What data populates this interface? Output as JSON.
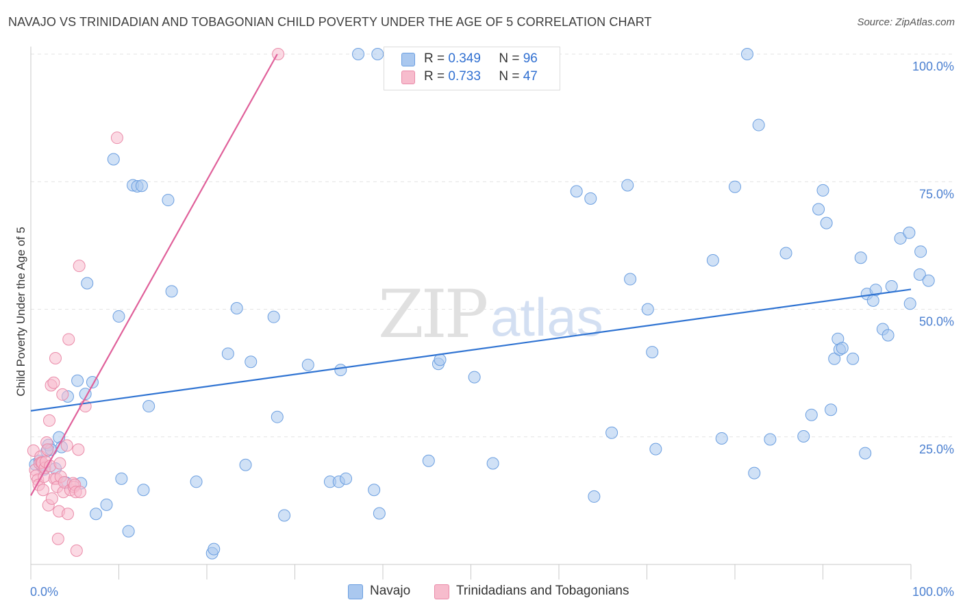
{
  "title": "NAVAJO VS TRINIDADIAN AND TOBAGONIAN CHILD POVERTY UNDER THE AGE OF 5 CORRELATION CHART",
  "source": "Source: ZipAtlas.com",
  "watermark": {
    "zip": "ZIP",
    "atlas": "atlas"
  },
  "colors": {
    "navajo_fill": "#aac8ef",
    "navajo_stroke": "#6a9ee0",
    "navajo_line": "#2f73d2",
    "trini_fill": "#f7bccd",
    "trini_stroke": "#ea8aa8",
    "trini_line": "#e0609a",
    "tick_text": "#4a7fd0",
    "grid": "#e3e3e3"
  },
  "legend_top": [
    {
      "r_label": "R =",
      "r_value": "0.349",
      "n_label": "N =",
      "n_value": "96"
    },
    {
      "r_label": "R =",
      "r_value": "0.733",
      "n_label": "N =",
      "n_value": "47"
    }
  ],
  "chart_data": {
    "type": "scatter",
    "title": "NAVAJO VS TRINIDADIAN AND TOBAGONIAN CHILD POVERTY UNDER THE AGE OF 5 CORRELATION CHART",
    "xlabel": "",
    "ylabel": "Child Poverty Under the Age of 5",
    "xlim": [
      0,
      100
    ],
    "ylim": [
      0,
      100
    ],
    "x_tick_labels": [
      "0.0%",
      "100.0%"
    ],
    "y_tick_labels": [
      "100.0%",
      "75.0%",
      "50.0%",
      "25.0%"
    ],
    "y_ticks": [
      100,
      75,
      50,
      25
    ],
    "grid": true,
    "legend": "bottom-center",
    "series": [
      {
        "name": "Navajo",
        "r": 0.349,
        "n": 96,
        "trend": {
          "x": [
            0,
            100
          ],
          "y": [
            30.1,
            53.9
          ]
        },
        "points": [
          [
            0.5,
            19.6
          ],
          [
            1.0,
            20.3
          ],
          [
            1.3,
            19.1
          ],
          [
            1.5,
            18.6
          ],
          [
            1.8,
            22.2
          ],
          [
            2.0,
            23.4
          ],
          [
            2.3,
            22.5
          ],
          [
            2.8,
            18.8
          ],
          [
            3.2,
            24.9
          ],
          [
            3.5,
            23.0
          ],
          [
            4.0,
            16.0
          ],
          [
            4.2,
            32.9
          ],
          [
            5.3,
            36.0
          ],
          [
            5.7,
            15.9
          ],
          [
            6.2,
            33.4
          ],
          [
            6.4,
            55.1
          ],
          [
            7.0,
            35.7
          ],
          [
            7.4,
            9.9
          ],
          [
            8.6,
            11.7
          ],
          [
            9.4,
            79.4
          ],
          [
            10.0,
            48.6
          ],
          [
            10.3,
            16.8
          ],
          [
            11.1,
            6.5
          ],
          [
            11.6,
            74.3
          ],
          [
            12.1,
            74.1
          ],
          [
            12.6,
            74.2
          ],
          [
            12.8,
            14.6
          ],
          [
            13.4,
            31.0
          ],
          [
            15.6,
            71.4
          ],
          [
            16.0,
            53.5
          ],
          [
            18.8,
            16.2
          ],
          [
            20.6,
            2.2
          ],
          [
            20.8,
            3.0
          ],
          [
            22.4,
            41.3
          ],
          [
            23.4,
            50.2
          ],
          [
            24.4,
            19.5
          ],
          [
            25.0,
            39.7
          ],
          [
            27.6,
            48.5
          ],
          [
            28.0,
            28.9
          ],
          [
            28.8,
            9.6
          ],
          [
            31.5,
            39.1
          ],
          [
            34.0,
            16.2
          ],
          [
            35.0,
            16.2
          ],
          [
            35.2,
            38.1
          ],
          [
            35.8,
            16.8
          ],
          [
            37.2,
            100
          ],
          [
            39.0,
            14.6
          ],
          [
            39.4,
            100
          ],
          [
            39.6,
            10.0
          ],
          [
            45.2,
            20.3
          ],
          [
            46.3,
            39.3
          ],
          [
            46.5,
            40.1
          ],
          [
            50.4,
            36.7
          ],
          [
            52.5,
            19.8
          ],
          [
            62.0,
            73.1
          ],
          [
            63.6,
            71.7
          ],
          [
            64.0,
            13.3
          ],
          [
            66.0,
            25.8
          ],
          [
            67.8,
            74.3
          ],
          [
            68.1,
            55.9
          ],
          [
            70.1,
            50.0
          ],
          [
            70.6,
            41.6
          ],
          [
            71.0,
            22.6
          ],
          [
            77.5,
            59.6
          ],
          [
            78.5,
            24.7
          ],
          [
            80.0,
            74.0
          ],
          [
            81.4,
            100
          ],
          [
            82.2,
            17.9
          ],
          [
            82.7,
            86.1
          ],
          [
            84.0,
            24.5
          ],
          [
            85.8,
            61.0
          ],
          [
            87.8,
            25.1
          ],
          [
            88.7,
            29.3
          ],
          [
            89.5,
            69.6
          ],
          [
            90.0,
            73.3
          ],
          [
            90.4,
            66.9
          ],
          [
            90.9,
            30.3
          ],
          [
            91.3,
            40.3
          ],
          [
            91.7,
            44.2
          ],
          [
            91.9,
            42.1
          ],
          [
            92.2,
            42.4
          ],
          [
            93.4,
            40.3
          ],
          [
            94.3,
            60.1
          ],
          [
            94.8,
            21.8
          ],
          [
            95.0,
            53.0
          ],
          [
            95.7,
            51.7
          ],
          [
            96.0,
            53.8
          ],
          [
            96.8,
            46.1
          ],
          [
            97.4,
            44.9
          ],
          [
            97.8,
            54.5
          ],
          [
            98.8,
            63.9
          ],
          [
            99.8,
            65.0
          ],
          [
            99.9,
            51.1
          ],
          [
            101.0,
            56.8
          ],
          [
            101.1,
            61.3
          ],
          [
            102.0,
            55.6
          ]
        ]
      },
      {
        "name": "Trinidadians and Tobagonians",
        "r": 0.733,
        "n": 47,
        "trend": {
          "x": [
            0,
            28
          ],
          "y": [
            13.5,
            100
          ]
        },
        "points": [
          [
            0.3,
            22.3
          ],
          [
            0.5,
            18.5
          ],
          [
            0.6,
            17.4
          ],
          [
            0.8,
            16.6
          ],
          [
            0.9,
            15.6
          ],
          [
            1.0,
            19.8
          ],
          [
            1.1,
            21.1
          ],
          [
            1.2,
            20.0
          ],
          [
            1.3,
            19.9
          ],
          [
            1.4,
            14.6
          ],
          [
            1.5,
            17.2
          ],
          [
            1.6,
            18.9
          ],
          [
            1.7,
            20.1
          ],
          [
            1.8,
            23.9
          ],
          [
            1.9,
            22.5
          ],
          [
            2.0,
            11.6
          ],
          [
            2.1,
            28.2
          ],
          [
            2.2,
            19.3
          ],
          [
            2.3,
            35.1
          ],
          [
            2.4,
            12.9
          ],
          [
            2.6,
            35.6
          ],
          [
            2.7,
            16.8
          ],
          [
            2.8,
            40.4
          ],
          [
            2.9,
            16.8
          ],
          [
            3.0,
            15.2
          ],
          [
            3.1,
            5.0
          ],
          [
            3.2,
            10.4
          ],
          [
            3.3,
            19.8
          ],
          [
            3.4,
            17.2
          ],
          [
            3.6,
            33.3
          ],
          [
            3.7,
            14.2
          ],
          [
            3.8,
            16.1
          ],
          [
            4.1,
            23.3
          ],
          [
            4.2,
            9.9
          ],
          [
            4.3,
            44.1
          ],
          [
            4.5,
            14.6
          ],
          [
            4.8,
            15.9
          ],
          [
            4.9,
            15.2
          ],
          [
            5.0,
            15.6
          ],
          [
            5.1,
            14.2
          ],
          [
            5.2,
            2.7
          ],
          [
            5.4,
            22.5
          ],
          [
            5.5,
            58.5
          ],
          [
            5.6,
            14.2
          ],
          [
            6.2,
            31.0
          ],
          [
            9.8,
            83.6
          ],
          [
            28.1,
            100
          ]
        ]
      }
    ]
  },
  "legend_bottom": [
    {
      "label": "Navajo"
    },
    {
      "label": "Trinidadians and Tobagonians"
    }
  ]
}
